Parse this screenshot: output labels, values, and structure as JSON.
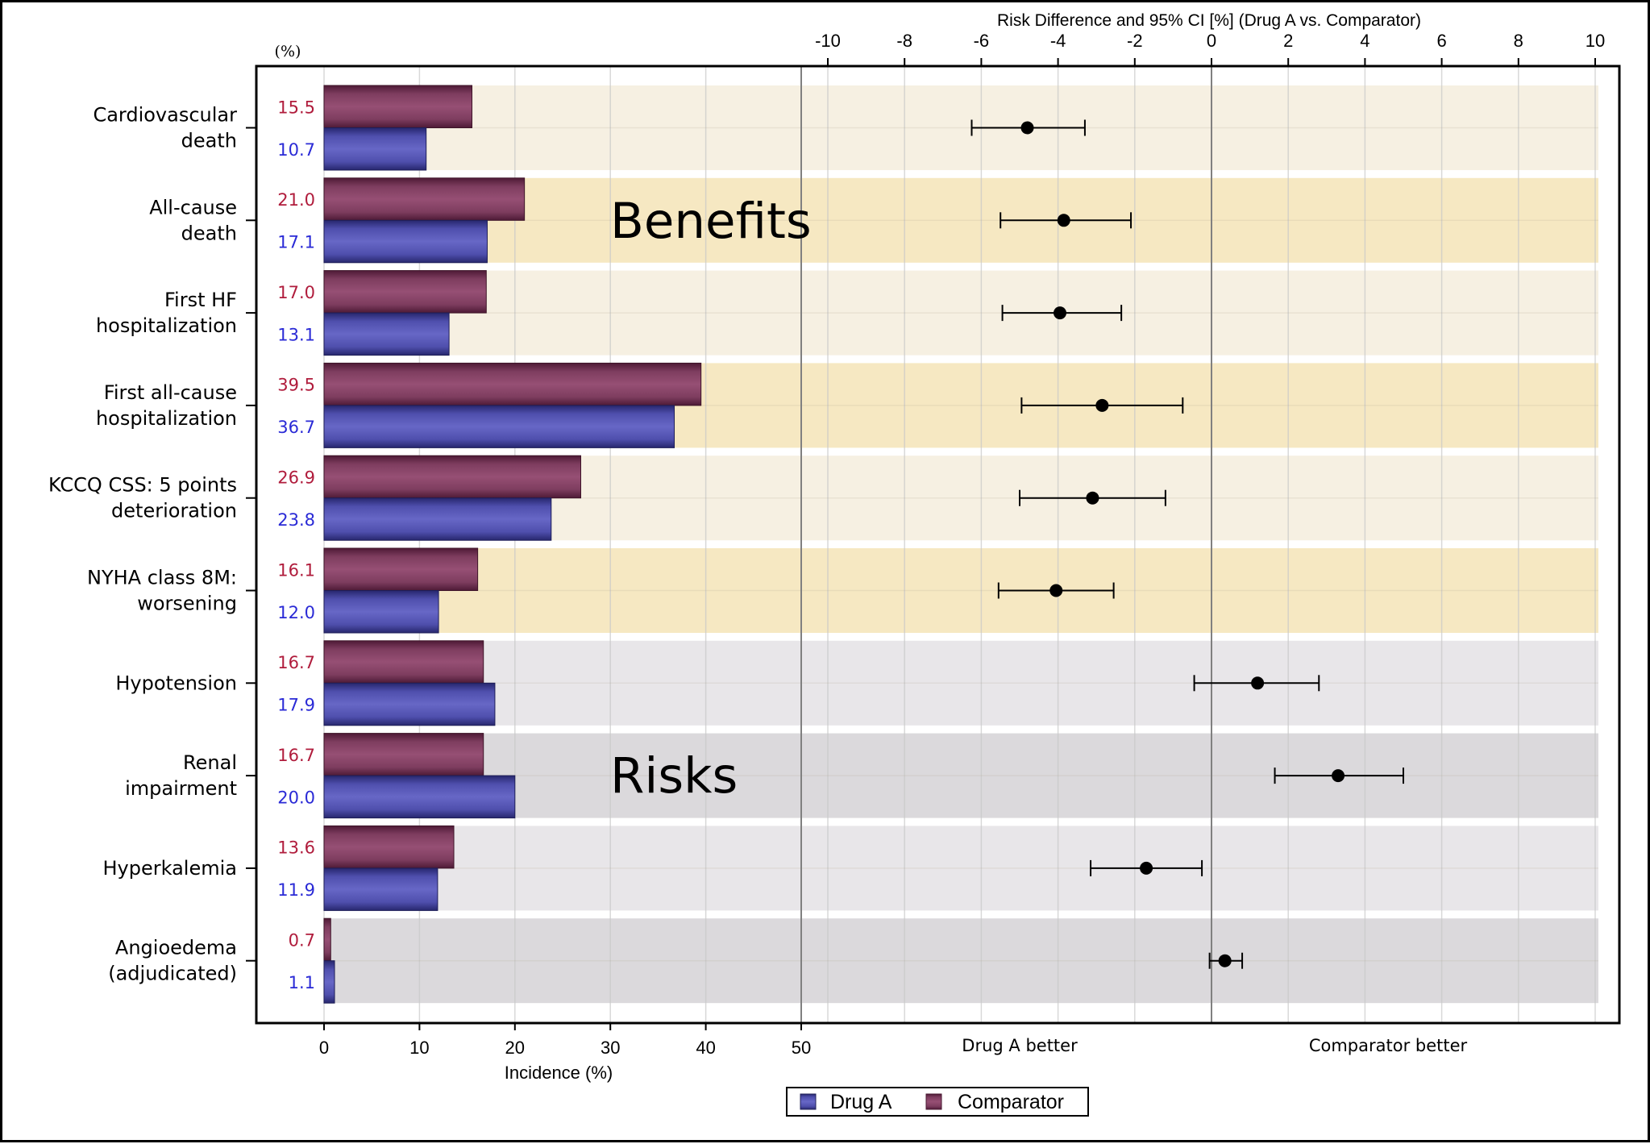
{
  "chart_data": {
    "type": "bar",
    "subtype": "benefit-risk bar + forest plot",
    "left_panel": {
      "type": "bar",
      "orientation": "horizontal",
      "unit_label": "(%)",
      "xlabel": "Incidence (%)",
      "xlim": [
        0,
        50
      ],
      "xticks": [
        0,
        10,
        20,
        30,
        40,
        50
      ],
      "gridlines": true
    },
    "right_panel": {
      "type": "scatter",
      "subtype": "forest (point estimate with 95% CI)",
      "title": "Risk Difference and 95% CI [%] (Drug A vs. Comparator)",
      "xlim": [
        -10,
        10
      ],
      "xticks": [
        -10,
        -8,
        -6,
        -4,
        -2,
        0,
        2,
        4,
        6,
        8,
        10
      ],
      "reference_line": 0,
      "left_annotation": "Drug A better",
      "right_annotation": "Comparator better",
      "gridlines": true
    },
    "groups": [
      {
        "name": "Benefits",
        "rows": [
          0,
          1,
          2,
          3,
          4,
          5
        ]
      },
      {
        "name": "Risks",
        "rows": [
          6,
          7,
          8,
          9
        ]
      }
    ],
    "categories": [
      [
        "Cardiovascular",
        "death"
      ],
      [
        "All-cause",
        "death"
      ],
      [
        "First HF",
        "hospitalization"
      ],
      [
        "First all-cause",
        "hospitalization"
      ],
      [
        "KCCQ CSS: 5 points",
        "deterioration"
      ],
      [
        "NYHA class 8M:",
        "worsening"
      ],
      [
        "Hypotension"
      ],
      [
        "Renal",
        "impairment"
      ],
      [
        "Hyperkalemia"
      ],
      [
        "Angioedema",
        "(adjudicated)"
      ]
    ],
    "series": [
      {
        "name": "Comparator",
        "color": "#954f72",
        "label_color": "#b01c3c",
        "values": [
          15.5,
          21.0,
          17.0,
          39.5,
          26.9,
          16.1,
          16.7,
          16.7,
          13.6,
          0.7
        ],
        "value_labels": [
          "15.5",
          "21.0",
          "17.0",
          "39.5",
          "26.9",
          "16.1",
          "16.7",
          "16.7",
          "13.6",
          "0.7"
        ]
      },
      {
        "name": "Drug A",
        "color": "#6666c4",
        "label_color": "#2a2ad6",
        "values": [
          10.7,
          17.1,
          13.1,
          36.7,
          23.8,
          12.0,
          17.9,
          20.0,
          11.9,
          1.1
        ],
        "value_labels": [
          "10.7",
          "17.1",
          "13.1",
          "36.7",
          "23.8",
          "12.0",
          "17.9",
          "20.0",
          "11.9",
          "1.1"
        ]
      }
    ],
    "risk_difference": [
      {
        "estimate": -4.8,
        "lower": -6.25,
        "upper": -3.3
      },
      {
        "estimate": -3.85,
        "lower": -5.5,
        "upper": -2.1
      },
      {
        "estimate": -3.95,
        "lower": -5.45,
        "upper": -2.35
      },
      {
        "estimate": -2.85,
        "lower": -4.95,
        "upper": -0.75
      },
      {
        "estimate": -3.1,
        "lower": -5.0,
        "upper": -1.2
      },
      {
        "estimate": -4.05,
        "lower": -5.55,
        "upper": -2.55
      },
      {
        "estimate": 1.2,
        "lower": -0.45,
        "upper": 2.8
      },
      {
        "estimate": 3.3,
        "lower": 1.65,
        "upper": 5.0
      },
      {
        "estimate": -1.7,
        "lower": -3.15,
        "upper": -0.25
      },
      {
        "estimate": 0.35,
        "lower": -0.05,
        "upper": 0.8
      }
    ],
    "band_colors": {
      "Benefits": [
        "#f6f0e2",
        "#f6e8c2"
      ],
      "Risks": [
        "#e8e6e9",
        "#dbd9dc"
      ]
    },
    "legend": {
      "placement": "bottom-center",
      "entries": [
        {
          "label": "Drug A",
          "color": "#6666c4"
        },
        {
          "label": "Comparator",
          "color": "#954f72"
        }
      ]
    }
  }
}
